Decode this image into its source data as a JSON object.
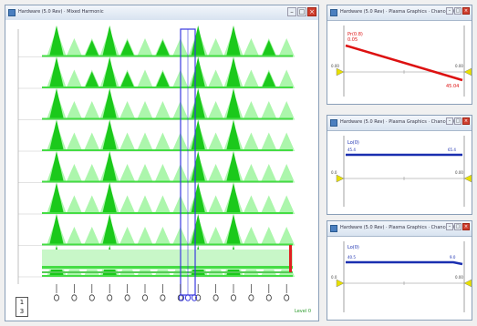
{
  "main_window": {
    "title": "Hardware (5.0 Rev) · Mixed Harmonic",
    "scale_top": "1",
    "scale_bottom": "3",
    "corner_label": "Level 0"
  },
  "panels": [
    {
      "title": "Hardware (5.0 Rev) · Plasma Graphics · Chance (0)",
      "top_label": "Pr(0.8)",
      "top_sublabel": "0.05",
      "left_value": "0.00",
      "right_value": "0.00",
      "end_label": "45.04",
      "series_color": "#dd1111"
    },
    {
      "title": "Hardware (5.0 Rev) · Plasma Graphics · Chance (0)",
      "top_label": "Lo(0)",
      "left_value": "0.0",
      "right_value": "0.00",
      "start_label": "45.4",
      "end_label": "65.4",
      "series_color": "#1a2fb0"
    },
    {
      "title": "Hardware (5.0 Rev) · Plasma Graphics · Chance (0)",
      "top_label": "Lo(0)",
      "left_value": "0.0",
      "right_value": "0.00",
      "start_label": "40.5",
      "end_label": "9.0",
      "series_color": "#1a2fb0"
    }
  ],
  "colors": {
    "peak_dark": "#1bc91b",
    "peak_light": "#9ef59e",
    "band": "#44dd44",
    "cursor": "#3a3ae0",
    "marker": "#e02020"
  }
}
